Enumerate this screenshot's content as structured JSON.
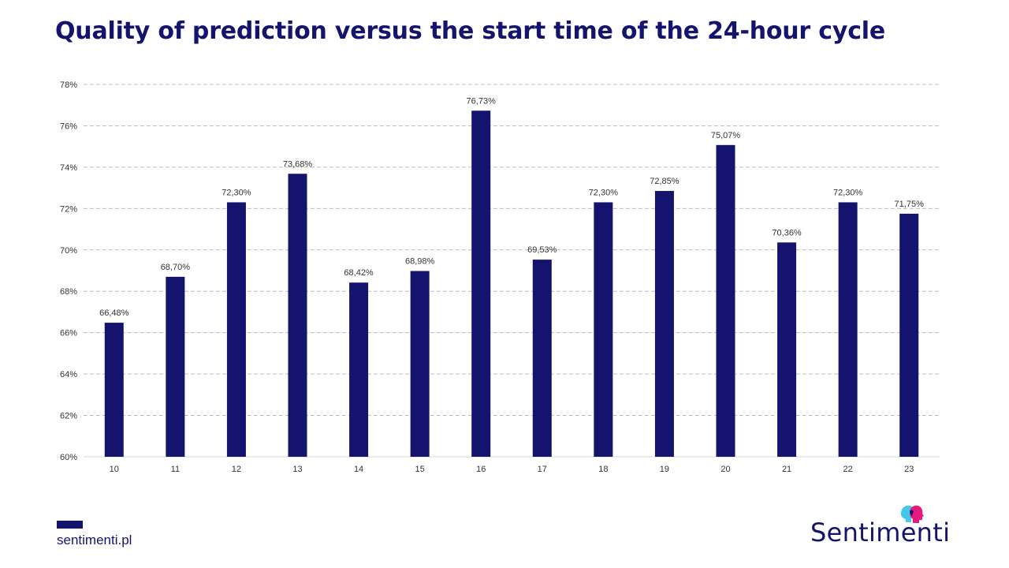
{
  "title": "Quality of prediction versus the start time of the 24-hour cycle",
  "footer": {
    "url": "sentimenti.pl"
  },
  "logo": {
    "text": "Sentimenti"
  },
  "colors": {
    "bar": "#14146e",
    "grid": "#bdbdbd",
    "text": "#333333",
    "accent_pink": "#e8197d",
    "accent_cyan": "#44c8e8"
  },
  "chart_data": {
    "type": "bar",
    "title": "Quality of prediction versus the start time of the 24-hour cycle",
    "categories": [
      "10",
      "11",
      "12",
      "13",
      "14",
      "15",
      "16",
      "17",
      "18",
      "19",
      "20",
      "21",
      "22",
      "23"
    ],
    "values": [
      66.48,
      68.7,
      72.3,
      73.68,
      68.42,
      68.98,
      76.73,
      69.53,
      72.3,
      72.85,
      75.07,
      70.36,
      72.3,
      71.75
    ],
    "data_labels": [
      "66,48%",
      "68,70%",
      "72,30%",
      "73,68%",
      "68,42%",
      "68,98%",
      "76,73%",
      "69,53%",
      "72,30%",
      "72,85%",
      "75,07%",
      "70,36%",
      "72,30%",
      "71,75%"
    ],
    "y_ticks": [
      60,
      62,
      64,
      66,
      68,
      70,
      72,
      74,
      76,
      78
    ],
    "y_tick_labels": [
      "60%",
      "62%",
      "64%",
      "66%",
      "68%",
      "70%",
      "72%",
      "74%",
      "76%",
      "78%"
    ],
    "ylim": [
      60,
      78
    ],
    "xlabel": "",
    "ylabel": "",
    "grid": true,
    "legend": "none"
  }
}
